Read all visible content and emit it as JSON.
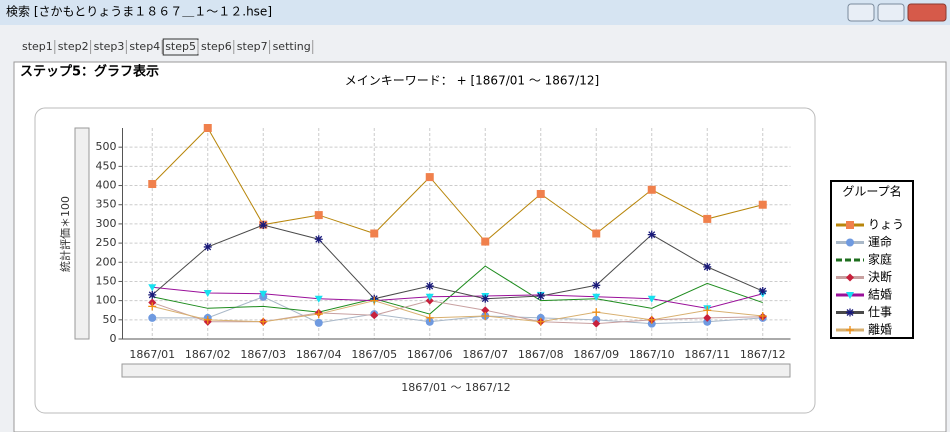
{
  "window": {
    "title": "検索 [さかもとりょうま１８６７＿１～１２.hse]"
  },
  "tabs": [
    "step1",
    "step2",
    "step3",
    "step4",
    "step5",
    "step6",
    "step7",
    "setting"
  ],
  "active_tab": 4,
  "heading": "ステップ5：グラフ表示",
  "keyword_label": "メインキーワード： + [1867/01 ～ 1867/12]",
  "chart_data": {
    "type": "line",
    "y_label": "統計評価＊100",
    "x_label": "1867/01 ～ 1867/12",
    "legend_title": "グループ名",
    "categories": [
      "1867/01",
      "1867/02",
      "1867/03",
      "1867/04",
      "1867/05",
      "1867/06",
      "1867/07",
      "1867/08",
      "1867/09",
      "1867/10",
      "1867/11",
      "1867/12"
    ],
    "ylim": [
      0,
      550
    ],
    "yticks": [
      0,
      50,
      100,
      150,
      200,
      250,
      300,
      350,
      400,
      450,
      500
    ],
    "grid": true,
    "series": [
      {
        "name": "りょう",
        "color": "#f0804c",
        "line_color": "#b8860b",
        "marker": "square",
        "values": [
          404,
          550,
          298,
          323,
          275,
          422,
          254,
          378,
          275,
          389,
          313,
          350
        ]
      },
      {
        "name": "運命",
        "color": "#6f9ae0",
        "line_color": "#a9b8c8",
        "marker": "circle",
        "values": [
          55,
          55,
          110,
          42,
          65,
          45,
          60,
          55,
          50,
          40,
          45,
          55
        ]
      },
      {
        "name": "家庭",
        "color": "#1e6e1e",
        "line_color": "#1e8c1e",
        "marker": "dash",
        "values": [
          110,
          80,
          85,
          70,
          105,
          65,
          190,
          100,
          105,
          80,
          145,
          95
        ]
      },
      {
        "name": "決断",
        "color": "#c8203c",
        "line_color": "#c8a0a0",
        "marker": "diamond",
        "values": [
          95,
          45,
          45,
          68,
          62,
          100,
          75,
          45,
          40,
          50,
          55,
          58
        ]
      },
      {
        "name": "結婚",
        "color": "#18e0f0",
        "line_color": "#9a109a",
        "marker": "triangle",
        "values": [
          135,
          120,
          118,
          105,
          100,
          110,
          112,
          115,
          110,
          105,
          80,
          118
        ]
      },
      {
        "name": "仕事",
        "color": "#1a1a7a",
        "line_color": "#4a4a4a",
        "marker": "star",
        "values": [
          115,
          240,
          297,
          260,
          105,
          138,
          105,
          112,
          140,
          272,
          188,
          125
        ]
      },
      {
        "name": "離婚",
        "color": "#f08c10",
        "line_color": "#d8b070",
        "marker": "plus",
        "values": [
          85,
          50,
          45,
          65,
          100,
          55,
          60,
          45,
          70,
          50,
          75,
          60
        ]
      }
    ]
  }
}
